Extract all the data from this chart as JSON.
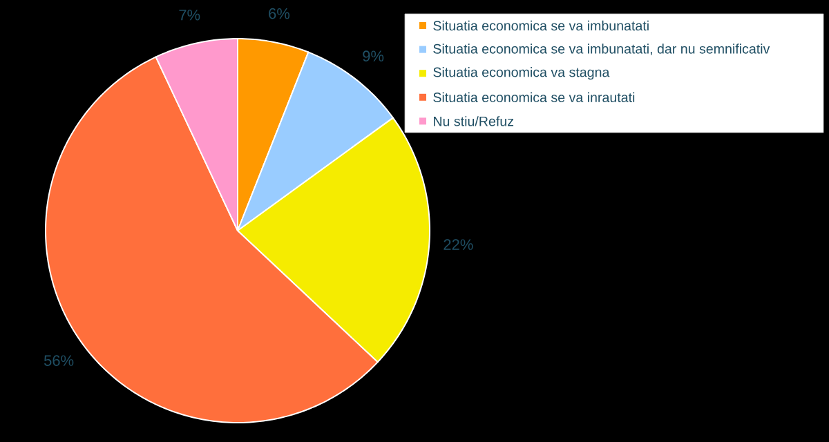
{
  "chart_data": {
    "type": "pie",
    "categories": [
      "Situatia economica se va imbunatati",
      "Situatia economica se va imbunatati, dar nu semnificativ",
      "Situatia economica va stagna",
      "Situatia economica se va inrautati",
      "Nu stiu/Refuz"
    ],
    "values": [
      6,
      9,
      22,
      56,
      7
    ],
    "colors": [
      "#ff9900",
      "#99ccff",
      "#f5ec00",
      "#ff6f3c",
      "#ff99cc"
    ],
    "value_labels": [
      "6%",
      "9%",
      "22%",
      "56%",
      "7%"
    ],
    "legend": "top right"
  }
}
